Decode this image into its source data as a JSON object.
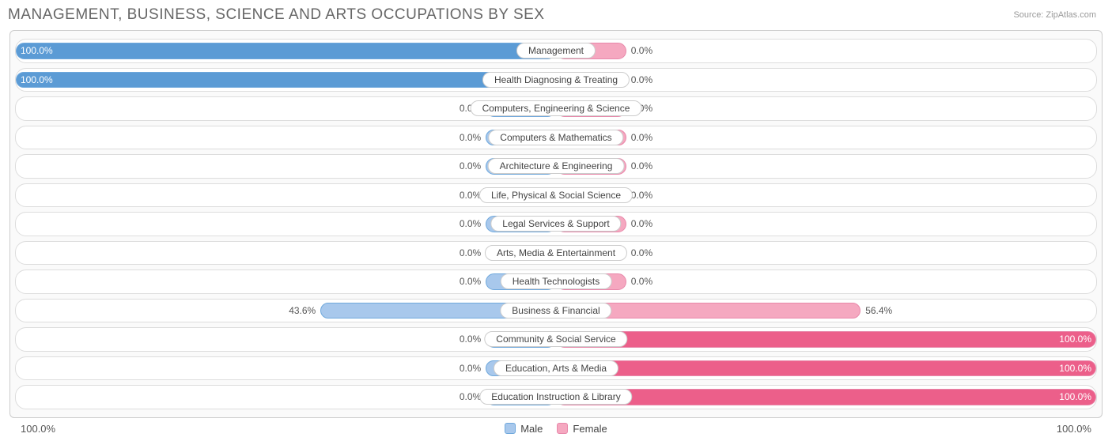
{
  "title": "MANAGEMENT, BUSINESS, SCIENCE AND ARTS OCCUPATIONS BY SEX",
  "source": "Source: ZipAtlas.com",
  "chart": {
    "type": "diverging-bar",
    "background": "#fafafa",
    "row_background": "#ffffff",
    "row_border": "#dddddd",
    "male": {
      "fill_full": "#5b9bd5",
      "fill_partial": "#a8c8ec",
      "border": "#6fa8dc",
      "label": "Male"
    },
    "female": {
      "fill_full": "#ec5f8a",
      "fill_partial": "#f5a8c0",
      "border": "#e888aa",
      "label": "Female"
    },
    "min_bar_pct": 13,
    "axis_left": "100.0%",
    "axis_right": "100.0%",
    "rows": [
      {
        "label": "Management",
        "male": 100.0,
        "female": 0.0
      },
      {
        "label": "Health Diagnosing & Treating",
        "male": 100.0,
        "female": 0.0
      },
      {
        "label": "Computers, Engineering & Science",
        "male": 0.0,
        "female": 0.0
      },
      {
        "label": "Computers & Mathematics",
        "male": 0.0,
        "female": 0.0
      },
      {
        "label": "Architecture & Engineering",
        "male": 0.0,
        "female": 0.0
      },
      {
        "label": "Life, Physical & Social Science",
        "male": 0.0,
        "female": 0.0
      },
      {
        "label": "Legal Services & Support",
        "male": 0.0,
        "female": 0.0
      },
      {
        "label": "Arts, Media & Entertainment",
        "male": 0.0,
        "female": 0.0
      },
      {
        "label": "Health Technologists",
        "male": 0.0,
        "female": 0.0
      },
      {
        "label": "Business & Financial",
        "male": 43.6,
        "female": 56.4
      },
      {
        "label": "Community & Social Service",
        "male": 0.0,
        "female": 100.0
      },
      {
        "label": "Education, Arts & Media",
        "male": 0.0,
        "female": 100.0
      },
      {
        "label": "Education Instruction & Library",
        "male": 0.0,
        "female": 100.0
      }
    ]
  }
}
